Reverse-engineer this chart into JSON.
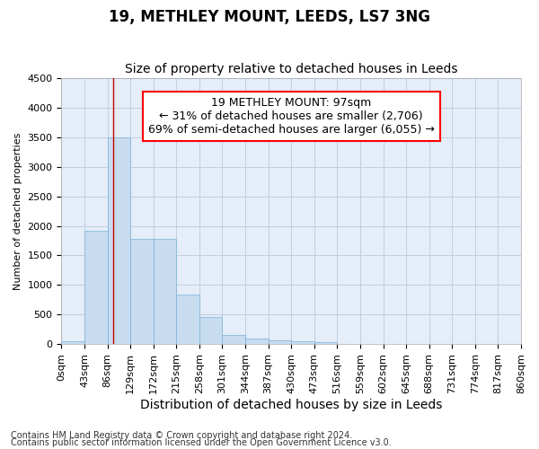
{
  "title": "19, METHLEY MOUNT, LEEDS, LS7 3NG",
  "subtitle": "Size of property relative to detached houses in Leeds",
  "xlabel": "Distribution of detached houses by size in Leeds",
  "ylabel": "Number of detached properties",
  "bar_color": "#c8dcf0",
  "bar_edge_color": "#7ab0d8",
  "background_color": "#e4edf8",
  "grid_color": "#c0cfe0",
  "vline_value": 97,
  "vline_color": "#cc0000",
  "annotation_lines": [
    "19 METHLEY MOUNT: 97sqm",
    "← 31% of detached houses are smaller (2,706)",
    "69% of semi-detached houses are larger (6,055) →"
  ],
  "bin_edges": [
    0,
    43,
    86,
    129,
    172,
    215,
    258,
    301,
    344,
    387,
    430,
    473,
    516,
    559,
    602,
    645,
    688,
    731,
    774,
    817,
    860
  ],
  "bin_counts": [
    48,
    1920,
    3500,
    1780,
    1780,
    840,
    460,
    155,
    98,
    68,
    52,
    38,
    0,
    0,
    0,
    0,
    0,
    0,
    0,
    0
  ],
  "ylim": [
    0,
    4500
  ],
  "yticks": [
    0,
    500,
    1000,
    1500,
    2000,
    2500,
    3000,
    3500,
    4000,
    4500
  ],
  "footnote1": "Contains HM Land Registry data © Crown copyright and database right 2024.",
  "footnote2": "Contains public sector information licensed under the Open Government Licence v3.0.",
  "title_fontsize": 12,
  "subtitle_fontsize": 10,
  "xlabel_fontsize": 10,
  "ylabel_fontsize": 8,
  "tick_fontsize": 8,
  "annot_fontsize": 9,
  "footnote_fontsize": 7
}
